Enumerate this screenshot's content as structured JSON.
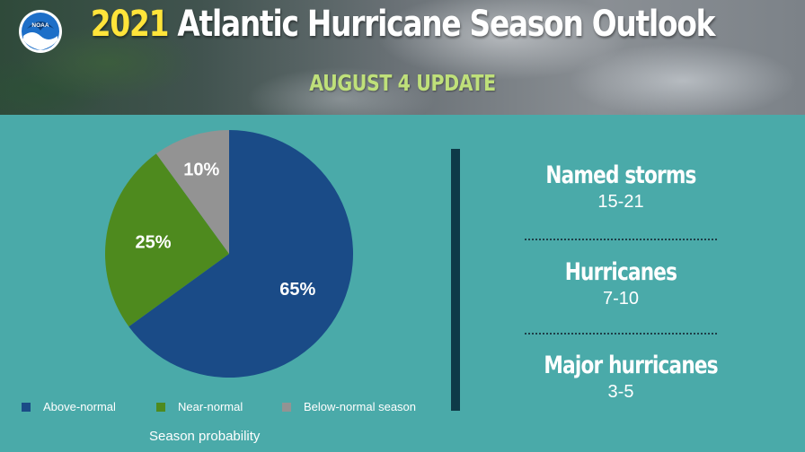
{
  "header": {
    "title_year": "2021",
    "title_rest": "Atlantic Hurricane Season Outlook",
    "subtitle": "AUGUST 4 UPDATE",
    "logo_text": "NOAA"
  },
  "chart_data": {
    "type": "pie",
    "slices": [
      {
        "label": "Above-normal",
        "value": 65,
        "display": "65%",
        "color": "#1a4b87"
      },
      {
        "label": "Near-normal",
        "value": 25,
        "display": "25%",
        "color": "#4e8a1e"
      },
      {
        "label": "Below-normal season",
        "value": 10,
        "display": "10%",
        "color": "#939393"
      }
    ],
    "footnote": "Season probability",
    "legend_position": "bottom"
  },
  "stats": [
    {
      "label": "Named storms",
      "value": "15-21"
    },
    {
      "label": "Hurricanes",
      "value": "7-10"
    },
    {
      "label": "Major hurricanes",
      "value": "3-5"
    }
  ],
  "colors": {
    "background": "#4aaaa9",
    "title_year": "#ffe43a",
    "subtitle": "#bfe07a",
    "divider": "#0e3a48"
  }
}
